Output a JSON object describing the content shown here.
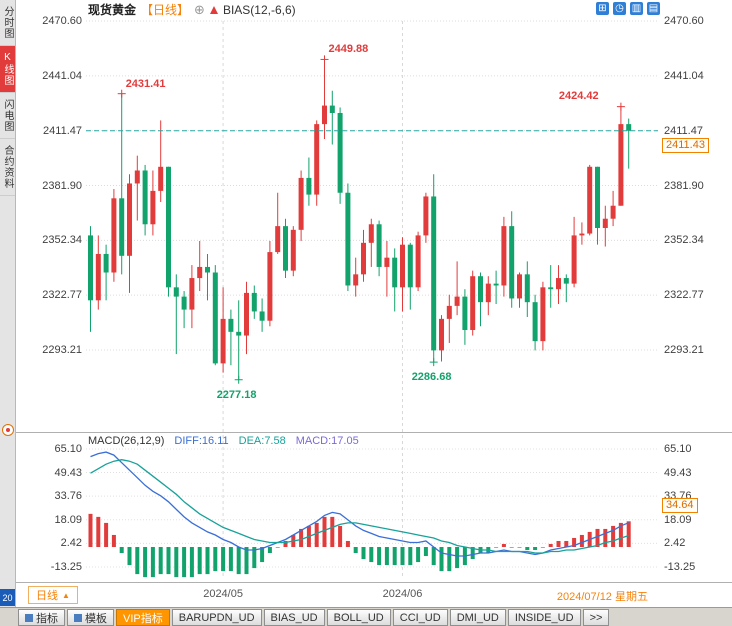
{
  "header": {
    "symbol": "现货黄金",
    "period_tag": "【日线】",
    "add_icon": "⊕",
    "indicator": "BIAS(12,-6,6)",
    "toolbar": [
      {
        "name": "grid-layout-icon",
        "glyph": "⊞"
      },
      {
        "name": "clock-period-icon",
        "glyph": "◷"
      },
      {
        "name": "panel-left-icon",
        "glyph": "▥"
      },
      {
        "name": "panel-right-icon",
        "glyph": "▤"
      }
    ]
  },
  "sidebar": {
    "tabs": [
      {
        "name": "time-chart",
        "label": "分时图",
        "active": false
      },
      {
        "name": "kline-chart",
        "label": "K线图",
        "active": true
      },
      {
        "name": "lightning-chart",
        "label": "闪电图",
        "active": false
      },
      {
        "name": "contract-info",
        "label": "合约资料",
        "active": false
      }
    ],
    "badge": "20"
  },
  "main_chart": {
    "current_price_label": "2411.43"
  },
  "macd_panel": {
    "title": "MACD(26,12,9)",
    "diff_label": "DIFF:16.11",
    "dea_label": "DEA:7.58",
    "macd_label": "MACD:17.05",
    "right_tag": "34.64"
  },
  "x_axis": {
    "current_date": "2024/07/12 星期五"
  },
  "period_button": {
    "label": "日线",
    "arrow": "▲"
  },
  "bottom_bar": {
    "tabs": [
      {
        "name": "indicators",
        "label": "指标",
        "active": false,
        "icon": "indicator-list-icon"
      },
      {
        "name": "templates",
        "label": "模板",
        "active": false,
        "icon": "template-icon"
      },
      {
        "name": "vip-indicators",
        "label": "VIP指标",
        "active": true
      },
      {
        "name": "barupdn-ud",
        "label": "BARUPDN_UD",
        "active": false
      },
      {
        "name": "bias-ud",
        "label": "BIAS_UD",
        "active": false
      },
      {
        "name": "boll-ud",
        "label": "BOLL_UD",
        "active": false
      },
      {
        "name": "cci-ud",
        "label": "CCI_UD",
        "active": false
      },
      {
        "name": "dmi-ud",
        "label": "DMI_UD",
        "active": false
      },
      {
        "name": "inside-ud",
        "label": "INSIDE_UD",
        "active": false
      },
      {
        "name": "more",
        "label": ">>",
        "active": false
      }
    ]
  },
  "colors": {
    "up": "#e23b3b",
    "down": "#12a26b",
    "diff_line": "#3a6fd8",
    "dea_line": "#18a29a",
    "current_line": "#2aa8a0",
    "accent_orange": "#f5820a",
    "icon_blue": "#2f7fd6"
  },
  "chart_data": {
    "type": "candlestick",
    "title": "现货黄金 日线 (Spot Gold Daily)",
    "price_ticks": [
      2470.6,
      2441.04,
      2411.47,
      2381.9,
      2352.34,
      2322.77,
      2293.21
    ],
    "current_price": 2411.43,
    "candles": [
      [
        2355,
        2360,
        2303,
        2320
      ],
      [
        2320,
        2355,
        2315,
        2345
      ],
      [
        2345,
        2350,
        2320,
        2335
      ],
      [
        2335,
        2380,
        2330,
        2375
      ],
      [
        2375,
        2431.41,
        2334,
        2344
      ],
      [
        2344,
        2388,
        2324,
        2383
      ],
      [
        2383,
        2398,
        2363,
        2390
      ],
      [
        2390,
        2393,
        2355,
        2361
      ],
      [
        2361,
        2390,
        2355,
        2379
      ],
      [
        2379,
        2417,
        2373,
        2392
      ],
      [
        2392,
        2392,
        2322,
        2327
      ],
      [
        2327,
        2334,
        2291,
        2322
      ],
      [
        2322,
        2325,
        2305,
        2315
      ],
      [
        2315,
        2339,
        2305,
        2332
      ],
      [
        2332,
        2352,
        2325,
        2338
      ],
      [
        2338,
        2345,
        2320,
        2335
      ],
      [
        2335,
        2339,
        2285,
        2286
      ],
      [
        2286,
        2327,
        2281,
        2310
      ],
      [
        2310,
        2315,
        2285,
        2303
      ],
      [
        2303,
        2320,
        2277.18,
        2301
      ],
      [
        2301,
        2330,
        2291,
        2324
      ],
      [
        2324,
        2328,
        2310,
        2314
      ],
      [
        2314,
        2321,
        2303,
        2309
      ],
      [
        2309,
        2352,
        2306,
        2346
      ],
      [
        2346,
        2378,
        2345,
        2360
      ],
      [
        2360,
        2364,
        2332,
        2336
      ],
      [
        2336,
        2360,
        2333,
        2358
      ],
      [
        2358,
        2390,
        2352,
        2386
      ],
      [
        2386,
        2397,
        2371,
        2377
      ],
      [
        2377,
        2417,
        2371,
        2415
      ],
      [
        2415,
        2449.88,
        2407,
        2425
      ],
      [
        2425,
        2433,
        2404,
        2421
      ],
      [
        2421,
        2424,
        2372,
        2378
      ],
      [
        2378,
        2383,
        2325,
        2328
      ],
      [
        2328,
        2343,
        2322,
        2334
      ],
      [
        2334,
        2358,
        2330,
        2351
      ],
      [
        2351,
        2364,
        2338,
        2361
      ],
      [
        2361,
        2363,
        2333,
        2338
      ],
      [
        2338,
        2352,
        2322,
        2343
      ],
      [
        2343,
        2348,
        2314,
        2327
      ],
      [
        2327,
        2354,
        2314,
        2350
      ],
      [
        2350,
        2351,
        2315,
        2327
      ],
      [
        2327,
        2357,
        2325,
        2355
      ],
      [
        2355,
        2378,
        2351,
        2376
      ],
      [
        2376,
        2388,
        2286.68,
        2293
      ],
      [
        2293,
        2312,
        2287,
        2310
      ],
      [
        2310,
        2323,
        2297,
        2317
      ],
      [
        2317,
        2341,
        2312,
        2322
      ],
      [
        2322,
        2326,
        2296,
        2304
      ],
      [
        2304,
        2336,
        2301,
        2333
      ],
      [
        2333,
        2335,
        2306,
        2319
      ],
      [
        2319,
        2333,
        2312,
        2329
      ],
      [
        2329,
        2336,
        2318,
        2328
      ],
      [
        2328,
        2365,
        2322,
        2360
      ],
      [
        2360,
        2368,
        2316,
        2321
      ],
      [
        2321,
        2335,
        2316,
        2334
      ],
      [
        2334,
        2341,
        2311,
        2319
      ],
      [
        2319,
        2323,
        2293,
        2298
      ],
      [
        2298,
        2330,
        2293,
        2327
      ],
      [
        2327,
        2339,
        2316,
        2326
      ],
      [
        2326,
        2339,
        2318,
        2332
      ],
      [
        2332,
        2334,
        2319,
        2329
      ],
      [
        2329,
        2365,
        2327,
        2355
      ],
      [
        2355,
        2362,
        2350,
        2356
      ],
      [
        2356,
        2393,
        2355,
        2392
      ],
      [
        2392,
        2392,
        2350,
        2359
      ],
      [
        2359,
        2371,
        2349,
        2364
      ],
      [
        2364,
        2379,
        2360,
        2371
      ],
      [
        2371,
        2424.42,
        2371,
        2415
      ],
      [
        2415,
        2418,
        2391,
        2411.43
      ]
    ],
    "annotations": [
      {
        "text": "2431.41",
        "index": 4,
        "value": 2431.41,
        "type": "high"
      },
      {
        "text": "2449.88",
        "index": 30,
        "value": 2449.88,
        "type": "high"
      },
      {
        "text": "2424.42",
        "index": 68,
        "value": 2424.42,
        "type": "high"
      },
      {
        "text": "2277.18",
        "index": 19,
        "value": 2277.18,
        "type": "low"
      },
      {
        "text": "2286.68",
        "index": 44,
        "value": 2286.68,
        "type": "low"
      }
    ],
    "month_boundaries": [
      {
        "index": 17,
        "label": "2024/05"
      },
      {
        "index": 40,
        "label": "2024/06"
      }
    ],
    "macd": {
      "params": "MACD(26,12,9)",
      "diff": 16.11,
      "dea": 7.58,
      "macd": 17.05,
      "ticks": [
        65.1,
        49.43,
        33.76,
        18.09,
        2.42,
        -13.25
      ],
      "right_tag": 34.64,
      "diff_series": [
        60,
        62,
        63,
        61,
        56,
        51,
        46,
        41,
        37,
        34,
        30,
        25,
        20,
        16,
        13,
        10,
        8,
        5,
        3,
        0,
        -2,
        -2,
        -1,
        1,
        3,
        5,
        8,
        11,
        14,
        17,
        21,
        23,
        22,
        18,
        14,
        11,
        9,
        7,
        6,
        5,
        4,
        3,
        3,
        4,
        0,
        -4,
        -5,
        -6,
        -6,
        -5,
        -4,
        -4,
        -3,
        -2,
        -3,
        -3,
        -4,
        -5,
        -4,
        -2,
        -1,
        0,
        1,
        3,
        5,
        7,
        9,
        11,
        14,
        16.11
      ],
      "dea_series": [
        49,
        52,
        55,
        57,
        58,
        57,
        55,
        51,
        47,
        43,
        39,
        35,
        30,
        26,
        22,
        19,
        16,
        13,
        11,
        9,
        7,
        5,
        4,
        3,
        3,
        3,
        4,
        5,
        7,
        9,
        11,
        13,
        15,
        16,
        16,
        15,
        14,
        13,
        12,
        11,
        10,
        9,
        8,
        7,
        6,
        4,
        3,
        1,
        0,
        -1,
        -2,
        -2,
        -3,
        -3,
        -3,
        -3,
        -3,
        -4,
        -4,
        -3,
        -3,
        -2,
        -2,
        -1,
        0,
        1,
        3,
        4,
        6,
        7.58
      ]
    }
  }
}
